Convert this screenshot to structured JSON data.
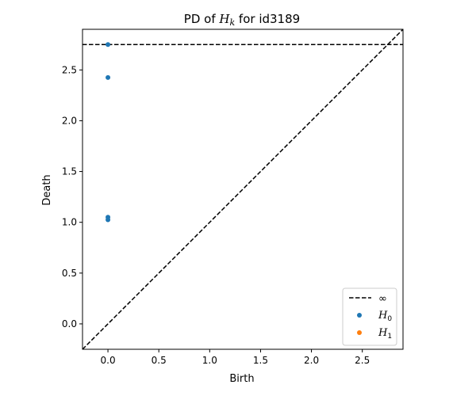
{
  "chart_data": {
    "type": "scatter",
    "title": {
      "prefix": "PD of ",
      "var": "H",
      "sub": "k",
      "suffix": " for id3189"
    },
    "xlabel": "Birth",
    "ylabel": "Death",
    "xlim": [
      -0.25,
      2.9
    ],
    "ylim": [
      -0.25,
      2.9
    ],
    "xticks": [
      0.0,
      0.5,
      1.0,
      1.5,
      2.0,
      2.5
    ],
    "yticks": [
      0.0,
      0.5,
      1.0,
      1.5,
      2.0,
      2.5
    ],
    "tick_labels": [
      "0.0",
      "0.5",
      "1.0",
      "1.5",
      "2.0",
      "2.5"
    ],
    "infinity_level": 2.75,
    "series": [
      {
        "name": "H_0",
        "color": "#1f77b4",
        "points": [
          [
            0.0,
            2.75
          ],
          [
            0.0,
            2.425
          ],
          [
            0.0,
            1.05
          ],
          [
            0.0,
            1.025
          ]
        ]
      },
      {
        "name": "H_1",
        "color": "#ff7f0e",
        "points": []
      }
    ],
    "legend": {
      "placement": "lower-right",
      "entries": [
        {
          "kind": "line",
          "label": "∞",
          "color": "#000000"
        },
        {
          "kind": "marker",
          "var": "H",
          "sub": "0",
          "color": "#1f77b4"
        },
        {
          "kind": "marker",
          "var": "H",
          "sub": "1",
          "color": "#ff7f0e"
        }
      ]
    },
    "grid": false
  }
}
